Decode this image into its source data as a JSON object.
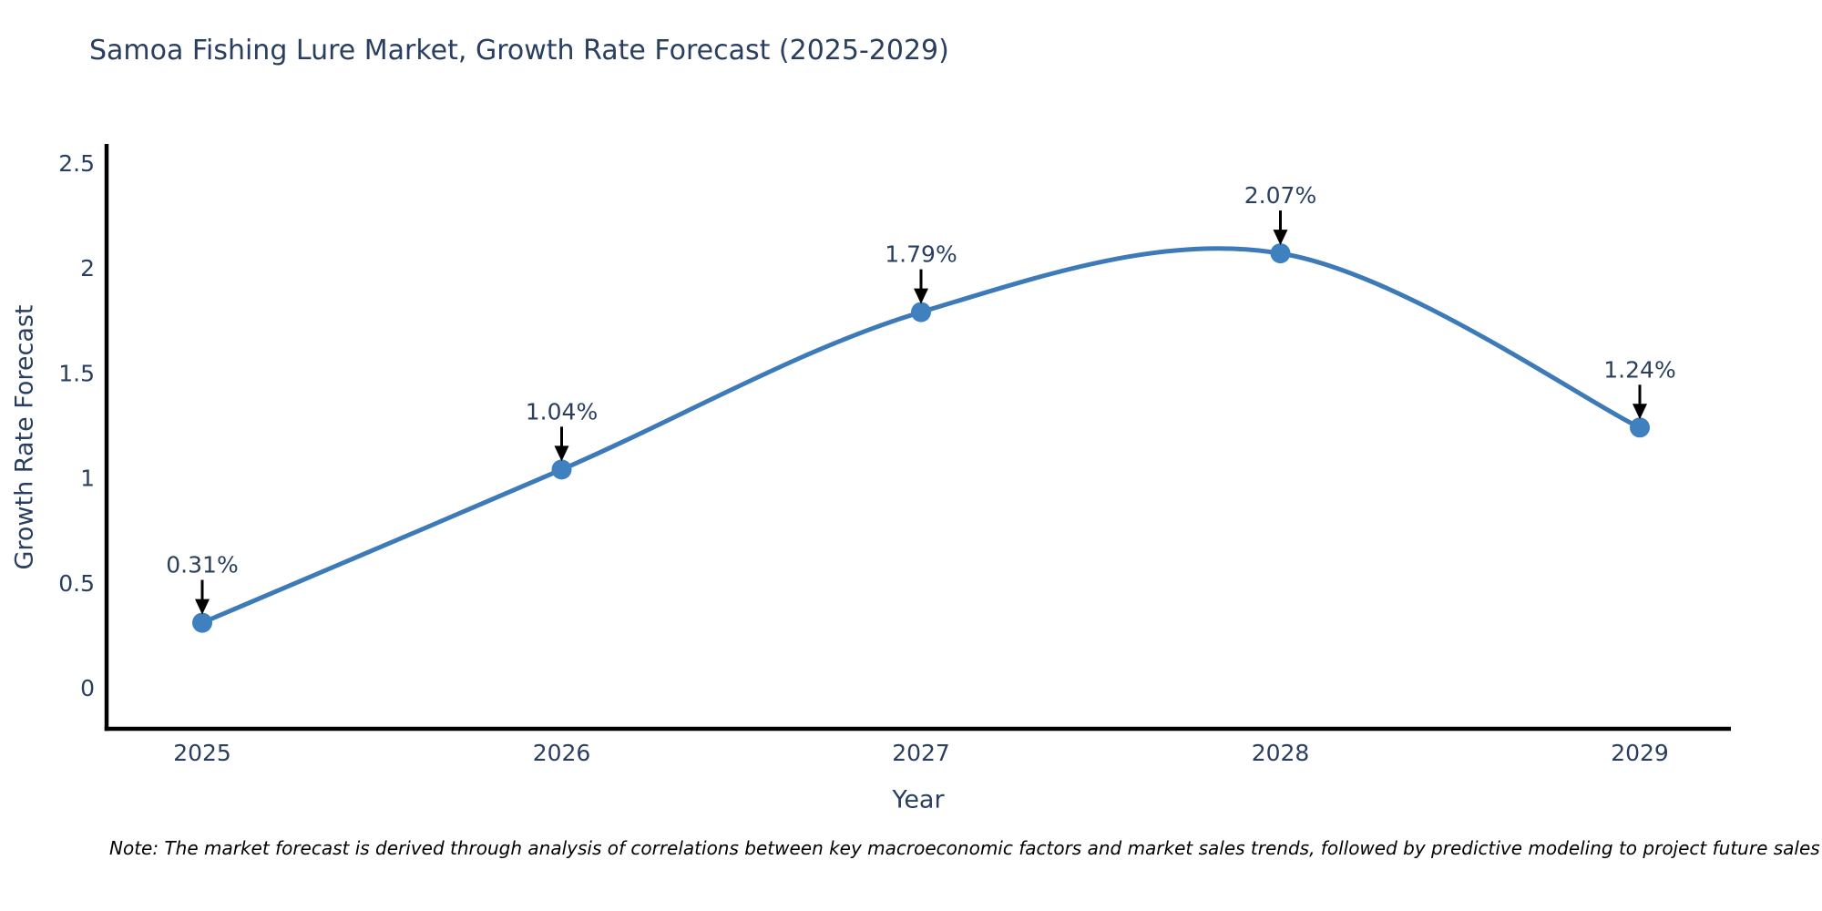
{
  "note": {
    "text": "Note: The market forecast is derived through analysis of correlations between key macroeconomic factors and market sales trends, followed by predictive modeling to project future sales"
  },
  "colors": {
    "line": "#3d7ab8",
    "marker": "#3f81bf",
    "axis": "#000000",
    "text": "#2a3f5f",
    "annotation_arrow": "#000000",
    "background": "#ffffff"
  },
  "chart_data": {
    "type": "line",
    "title": "Samoa Fishing Lure Market, Growth Rate Forecast (2025-2029)",
    "xlabel": "Year",
    "ylabel": "Growth Rate Forecast",
    "x": [
      2025,
      2026,
      2027,
      2028,
      2029
    ],
    "categories": [
      "2025",
      "2026",
      "2027",
      "2028",
      "2029"
    ],
    "values": [
      0.31,
      1.04,
      1.79,
      2.07,
      1.24
    ],
    "point_labels": [
      "0.31%",
      "1.04%",
      "1.79%",
      "2.07%",
      "1.24%"
    ],
    "y_ticks": [
      0,
      0.5,
      1,
      1.5,
      2,
      2.5
    ],
    "ylim": [
      -0.2,
      2.6
    ],
    "xlim": [
      2024.73,
      2029.25
    ],
    "line_shape": "spline",
    "markers": true,
    "grid": false,
    "legend": "none",
    "annotations": "value labels with down arrows above each point"
  }
}
